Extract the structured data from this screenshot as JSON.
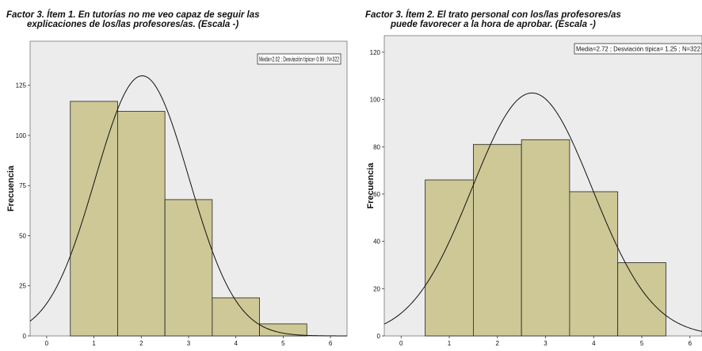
{
  "chart_data": [
    {
      "type": "histogram",
      "title_line1": "Factor 3. Ítem 1. En tutorías no me veo capaz de seguir las",
      "title_line2": "explicaciones de los/las profesores/as. (Escala -)",
      "ylabel": "Frecuencia",
      "stats": "Media=2.02 ; Desviación típica= 0.99 ; N=322",
      "x_ticks": [
        "0",
        "1",
        "2",
        "3",
        "4",
        "5",
        "6"
      ],
      "y_ticks": [
        "0",
        "25",
        "50",
        "75",
        "100",
        "125"
      ],
      "xlim": [
        -0.35,
        6.35
      ],
      "ylim": [
        0,
        147
      ],
      "bin_width": 1,
      "bins": [
        1,
        2,
        3,
        4,
        5
      ],
      "values": [
        117,
        112,
        68,
        19,
        6
      ],
      "normal_curve": {
        "mean": 2.02,
        "sd": 0.99,
        "n": 322
      },
      "colors": {
        "bar": "#cdc896",
        "plot_bg": "#ececec",
        "stroke": "#222222"
      }
    },
    {
      "type": "histogram",
      "title_line1": "Factor 3. Ítem 2. El trato personal con los/las profesores/as",
      "title_line2": "puede favorecer a la hora de aprobar. (Escala -)",
      "ylabel": "Frecuencia",
      "stats": "Media=2.72 ; Desviación típica= 1.25 ; N=322",
      "x_ticks": [
        "0",
        "1",
        "2",
        "3",
        "4",
        "5",
        "6"
      ],
      "y_ticks": [
        "0",
        "20",
        "40",
        "60",
        "80",
        "100",
        "120"
      ],
      "xlim": [
        -0.35,
        6.25
      ],
      "ylim": [
        0,
        127
      ],
      "bin_width": 1,
      "bins": [
        1,
        2,
        3,
        4,
        5
      ],
      "values": [
        66,
        81,
        83,
        61,
        31
      ],
      "normal_curve": {
        "mean": 2.72,
        "sd": 1.25,
        "n": 322
      },
      "colors": {
        "bar": "#cdc896",
        "plot_bg": "#ececec",
        "stroke": "#222222"
      }
    }
  ]
}
